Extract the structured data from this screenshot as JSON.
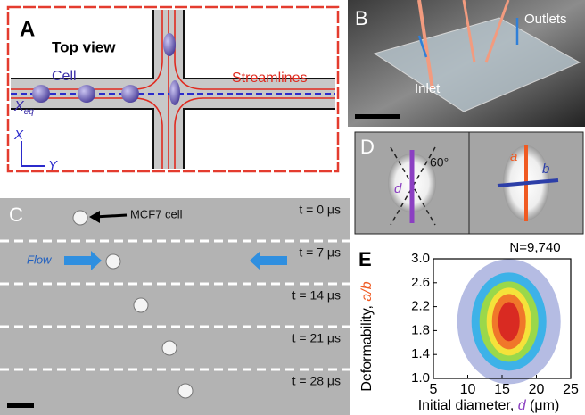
{
  "panel_a": {
    "letter": "A",
    "top_view": "Top view",
    "cell": "Cell",
    "streamlines": "Streamlines",
    "x_eq": "X",
    "x_eq_sub": "eq",
    "axis_x": "X",
    "axis_y": "Y"
  },
  "panel_b": {
    "letter": "B",
    "outlets": "Outlets",
    "inlet": "Inlet"
  },
  "panel_c": {
    "letter": "C",
    "cell_label": "MCF7 cell",
    "flow": "Flow",
    "times": [
      "t = 0 μs",
      "t = 7 μs",
      "t = 14 μs",
      "t = 21 μs",
      "t = 28 μs"
    ]
  },
  "panel_d": {
    "letter": "D",
    "d": "d",
    "angle": "60°",
    "a": "a",
    "b": "b"
  },
  "panel_e": {
    "letter": "E"
  },
  "chart_data": {
    "type": "density",
    "annotation": "N=9,740",
    "x_label": [
      "Initial diameter, ",
      "d",
      " (μm)"
    ],
    "y_label": [
      "Deformability, ",
      "a/b"
    ],
    "xlim": [
      5,
      25
    ],
    "xticks": [
      5,
      10,
      15,
      20,
      25
    ],
    "ylim": [
      1.0,
      3.0
    ],
    "yticks": [
      {
        "value": 1.0,
        "label": "1.0"
      },
      1.4,
      1.8,
      2.2,
      2.6,
      {
        "value": 3.0,
        "label": "3.0"
      }
    ]
  }
}
